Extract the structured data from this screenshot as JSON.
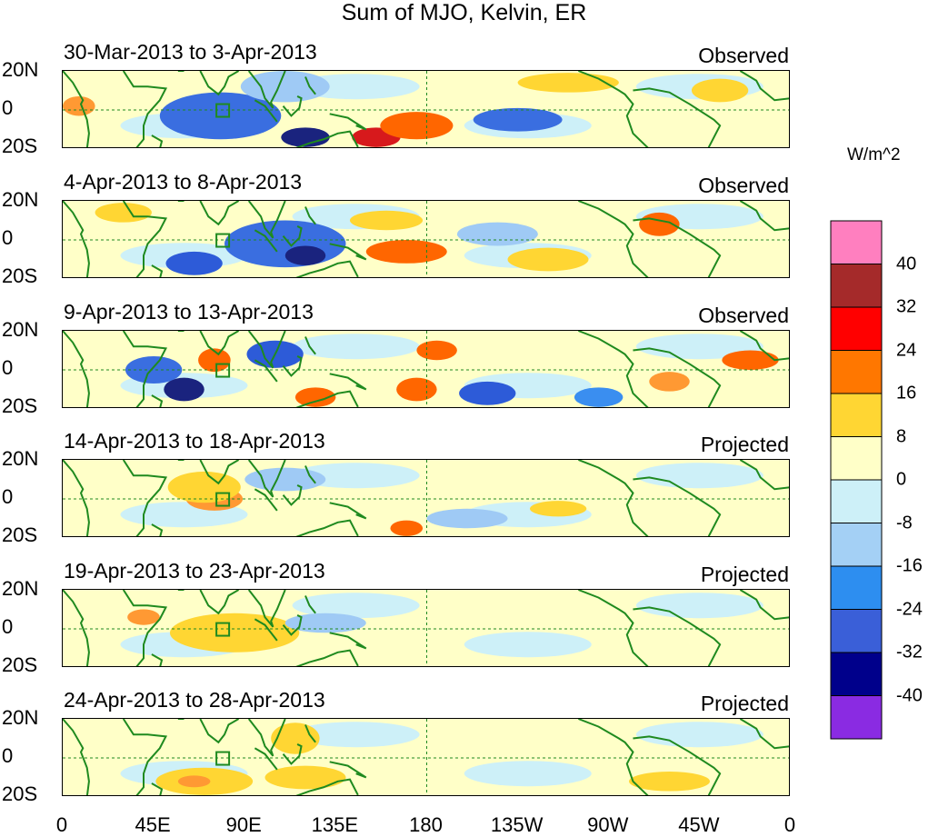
{
  "title": "Sum of MJO, Kelvin, ER",
  "panels": [
    {
      "date": "30-Mar-2013 to 3-Apr-2013",
      "status": "Observed",
      "blobs": [
        {
          "lon": 80,
          "lat": -4,
          "color": "#8a2be2",
          "rx": 16,
          "ry": 7
        },
        {
          "lon": 78,
          "lat": -3,
          "color": "#3a6ee0",
          "rx": 30,
          "ry": 12
        },
        {
          "lon": 120,
          "lat": -14,
          "color": "#1a237e",
          "rx": 12,
          "ry": 5
        },
        {
          "lon": 155,
          "lat": -14,
          "color": "#d7191c",
          "rx": 12,
          "ry": 5
        },
        {
          "lon": 175,
          "lat": -8,
          "color": "#ff6600",
          "rx": 18,
          "ry": 7
        },
        {
          "lon": 225,
          "lat": -5,
          "color": "#3a6ee0",
          "rx": 22,
          "ry": 6
        },
        {
          "lon": 8,
          "lat": 2,
          "color": "#ff9933",
          "rx": 8,
          "ry": 5
        },
        {
          "lon": 110,
          "lat": 12,
          "color": "#9fcaf5",
          "rx": 22,
          "ry": 8
        },
        {
          "lon": 250,
          "lat": 14,
          "color": "#ffd633",
          "rx": 25,
          "ry": 5
        },
        {
          "lon": 325,
          "lat": 10,
          "color": "#ffd633",
          "rx": 14,
          "ry": 6
        }
      ]
    },
    {
      "date": "4-Apr-2013 to 8-Apr-2013",
      "status": "Observed",
      "blobs": [
        {
          "lon": 110,
          "lat": -2,
          "color": "#3a6ee0",
          "rx": 30,
          "ry": 12
        },
        {
          "lon": 120,
          "lat": -8,
          "color": "#1a237e",
          "rx": 10,
          "ry": 5
        },
        {
          "lon": 65,
          "lat": -12,
          "color": "#2d5bd8",
          "rx": 14,
          "ry": 6
        },
        {
          "lon": 170,
          "lat": -6,
          "color": "#ff6600",
          "rx": 20,
          "ry": 6
        },
        {
          "lon": 160,
          "lat": 10,
          "color": "#ffd633",
          "rx": 18,
          "ry": 5
        },
        {
          "lon": 240,
          "lat": -10,
          "color": "#ffd633",
          "rx": 20,
          "ry": 6
        },
        {
          "lon": 295,
          "lat": 8,
          "color": "#ff6600",
          "rx": 10,
          "ry": 6
        },
        {
          "lon": 215,
          "lat": 3,
          "color": "#9fcaf5",
          "rx": 20,
          "ry": 6
        },
        {
          "lon": 30,
          "lat": 14,
          "color": "#ffd633",
          "rx": 14,
          "ry": 5
        }
      ]
    },
    {
      "date": "9-Apr-2013 to 13-Apr-2013",
      "status": "Observed",
      "blobs": [
        {
          "lon": 75,
          "lat": 5,
          "color": "#ff6600",
          "rx": 8,
          "ry": 6
        },
        {
          "lon": 60,
          "lat": -10,
          "color": "#1a237e",
          "rx": 10,
          "ry": 6
        },
        {
          "lon": 45,
          "lat": 0,
          "color": "#3a6ee0",
          "rx": 14,
          "ry": 7
        },
        {
          "lon": 105,
          "lat": 8,
          "color": "#2d5bd8",
          "rx": 14,
          "ry": 7
        },
        {
          "lon": 125,
          "lat": -14,
          "color": "#ff6600",
          "rx": 10,
          "ry": 5
        },
        {
          "lon": 175,
          "lat": -10,
          "color": "#ff6600",
          "rx": 10,
          "ry": 6
        },
        {
          "lon": 185,
          "lat": 10,
          "color": "#ff6600",
          "rx": 10,
          "ry": 5
        },
        {
          "lon": 210,
          "lat": -12,
          "color": "#2d5bd8",
          "rx": 14,
          "ry": 6
        },
        {
          "lon": 340,
          "lat": 5,
          "color": "#ff6600",
          "rx": 14,
          "ry": 5
        },
        {
          "lon": 300,
          "lat": -6,
          "color": "#ff9933",
          "rx": 10,
          "ry": 5
        },
        {
          "lon": 265,
          "lat": -14,
          "color": "#3a8ef0",
          "rx": 12,
          "ry": 5
        }
      ]
    },
    {
      "date": "14-Apr-2013 to 18-Apr-2013",
      "status": "Projected",
      "blobs": [
        {
          "lon": 75,
          "lat": 0,
          "color": "#ff9933",
          "rx": 14,
          "ry": 6
        },
        {
          "lon": 70,
          "lat": 6,
          "color": "#ffd633",
          "rx": 18,
          "ry": 8
        },
        {
          "lon": 170,
          "lat": -15,
          "color": "#ff6600",
          "rx": 8,
          "ry": 4
        },
        {
          "lon": 200,
          "lat": -10,
          "color": "#9fcaf5",
          "rx": 20,
          "ry": 5
        },
        {
          "lon": 110,
          "lat": 10,
          "color": "#9fcaf5",
          "rx": 20,
          "ry": 6
        },
        {
          "lon": 245,
          "lat": -5,
          "color": "#ffd633",
          "rx": 14,
          "ry": 4
        }
      ]
    },
    {
      "date": "19-Apr-2013 to 23-Apr-2013",
      "status": "Projected",
      "blobs": [
        {
          "lon": 85,
          "lat": -2,
          "color": "#ff9933",
          "rx": 18,
          "ry": 6
        },
        {
          "lon": 85,
          "lat": -2,
          "color": "#ffd633",
          "rx": 32,
          "ry": 10
        },
        {
          "lon": 40,
          "lat": 6,
          "color": "#ff9933",
          "rx": 8,
          "ry": 4
        },
        {
          "lon": 130,
          "lat": 3,
          "color": "#9fcaf5",
          "rx": 20,
          "ry": 5
        }
      ]
    },
    {
      "date": "24-Apr-2013 to 28-Apr-2013",
      "status": "Projected",
      "blobs": [
        {
          "lon": 70,
          "lat": -12,
          "color": "#ffd633",
          "rx": 24,
          "ry": 7
        },
        {
          "lon": 65,
          "lat": -12,
          "color": "#ff9933",
          "rx": 8,
          "ry": 3
        },
        {
          "lon": 115,
          "lat": 10,
          "color": "#ffd633",
          "rx": 12,
          "ry": 8
        },
        {
          "lon": 120,
          "lat": -10,
          "color": "#ffd633",
          "rx": 20,
          "ry": 6
        },
        {
          "lon": 300,
          "lat": -12,
          "color": "#ffd633",
          "rx": 20,
          "ry": 5
        }
      ]
    }
  ],
  "lat_labels": [
    "20N",
    "0",
    "20S"
  ],
  "x_ticks": [
    {
      "label": "0",
      "lon": 0
    },
    {
      "label": "45E",
      "lon": 45
    },
    {
      "label": "90E",
      "lon": 90
    },
    {
      "label": "135E",
      "lon": 135
    },
    {
      "label": "180",
      "lon": 180
    },
    {
      "label": "135W",
      "lon": 225
    },
    {
      "label": "90W",
      "lon": 270
    },
    {
      "label": "45W",
      "lon": 315
    },
    {
      "label": "0",
      "lon": 360
    }
  ],
  "colorbar": {
    "unit": "W/m^2",
    "levels": [
      "40",
      "32",
      "24",
      "16",
      "8",
      "0",
      "-8",
      "-16",
      "-24",
      "-32",
      "-40"
    ],
    "colors": [
      "#ff7fbf",
      "#a52a2a",
      "#ff0000",
      "#ff7700",
      "#ffd633",
      "#ffffc8",
      "#cdf0f8",
      "#a4d0f5",
      "#2d8ef0",
      "#3a5fd8",
      "#00008b",
      "#8a2be2"
    ]
  },
  "colors": {
    "background_map": "#ffffc8",
    "coast": "#1f8a1f",
    "neutral_negative": "#cdf0f8"
  }
}
